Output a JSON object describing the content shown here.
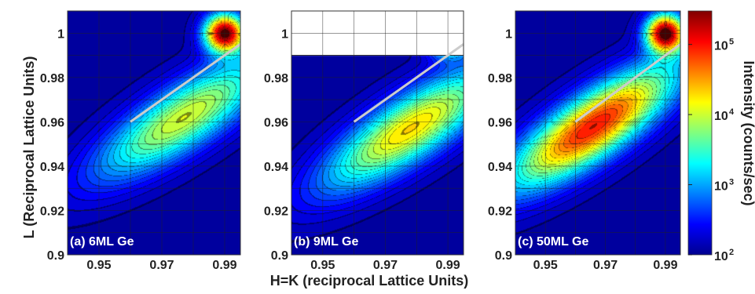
{
  "figure": {
    "xlabel": "H=K (reciprocal Lattice Units)",
    "ylabel": "L (Reciprocal Lattice Units)",
    "colorbar_label": "Intensity (counts/sec)"
  },
  "chart_data": [
    {
      "type": "heatmap",
      "panel_label": "(a) 6ML Ge",
      "x_ticks": [
        "0.95",
        "0.97",
        "0.99"
      ],
      "y_ticks": [
        "0.9",
        "0.92",
        "0.94",
        "0.96",
        "0.98",
        "1"
      ],
      "xlim": [
        0.94,
        0.995
      ],
      "ylim": [
        0.9,
        1.01
      ],
      "scan_cutoff_L": 1.01,
      "peak_H": 0.977,
      "peak_L": 0.962,
      "peak_log10_intensity": 4.05,
      "substrate_peak_H": 0.99,
      "substrate_peak_L": 1.0,
      "guide_line": {
        "h": [
          0.96,
          0.995
        ],
        "l": [
          0.96,
          0.995
        ]
      },
      "grid": true
    },
    {
      "type": "heatmap",
      "panel_label": "(b) 9ML Ge",
      "x_ticks": [
        "0.95",
        "0.97",
        "0.99"
      ],
      "y_ticks": [
        "0.9",
        "0.92",
        "0.94",
        "0.96",
        "0.98",
        "1"
      ],
      "xlim": [
        0.94,
        0.995
      ],
      "ylim": [
        0.9,
        1.01
      ],
      "scan_cutoff_L": 0.99,
      "peak_H": 0.978,
      "peak_L": 0.957,
      "peak_log10_intensity": 4.3,
      "substrate_peak_H": 0.99,
      "substrate_peak_L": 1.0,
      "guide_line": {
        "h": [
          0.96,
          0.995
        ],
        "l": [
          0.96,
          0.995
        ]
      },
      "grid": true
    },
    {
      "type": "heatmap",
      "panel_label": "(c) 50ML Ge",
      "x_ticks": [
        "0.95",
        "0.97",
        "0.99"
      ],
      "y_ticks": [
        "0.9",
        "0.92",
        "0.94",
        "0.96",
        "0.98",
        "1"
      ],
      "xlim": [
        0.94,
        0.995
      ],
      "ylim": [
        0.9,
        1.01
      ],
      "scan_cutoff_L": 1.01,
      "peak_H": 0.966,
      "peak_L": 0.958,
      "peak_log10_intensity": 5.0,
      "substrate_peak_H": 0.99,
      "substrate_peak_L": 1.0,
      "guide_line": {
        "h": [
          0.96,
          0.995
        ],
        "l": [
          0.96,
          0.995
        ]
      },
      "grid": true
    }
  ],
  "colorbar": {
    "scale": "log",
    "range": [
      100,
      300000
    ],
    "tick_bases": [
      "10",
      "10",
      "10",
      "10"
    ],
    "tick_exponents": [
      "2",
      "3",
      "4",
      "5"
    ],
    "colormap": "jet"
  }
}
